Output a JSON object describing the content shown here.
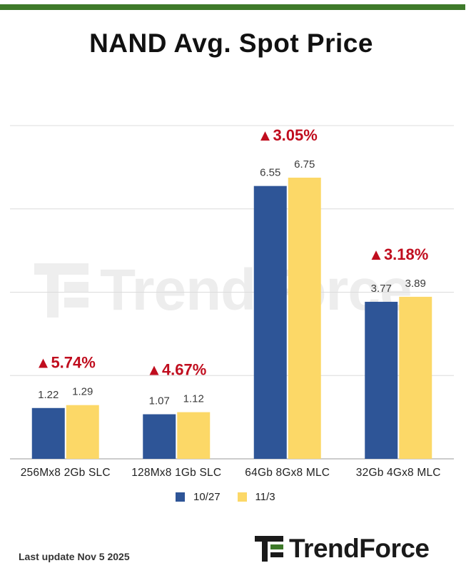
{
  "header": {
    "title": "NAND Avg. Spot Price"
  },
  "chart_data": {
    "type": "bar",
    "title": "NAND Avg. Spot Price",
    "xlabel": "",
    "ylabel": "",
    "categories": [
      "256Mx8 2Gb SLC",
      "128Mx8 1Gb SLC",
      "64Gb 8Gx8 MLC",
      "32Gb 4Gx8 MLC"
    ],
    "series": [
      {
        "name": "10/27",
        "values": [
          1.22,
          1.07,
          6.55,
          3.77
        ],
        "labels": [
          "1.22",
          "1.07",
          "6.55",
          "3.77"
        ],
        "color": "#2e5597"
      },
      {
        "name": "11/3",
        "values": [
          1.29,
          1.12,
          6.75,
          3.89
        ],
        "labels": [
          "1.29",
          "1.12",
          "6.75",
          "3.89"
        ],
        "color": "#fcd867"
      }
    ],
    "annotations": [
      "▲5.74%",
      "▲4.67%",
      "▲3.05%",
      "▲3.18%"
    ],
    "annotation_color": "#c00d1e",
    "ylim": [
      0,
      8
    ],
    "grid": true,
    "legend_position": "bottom"
  },
  "footer": {
    "last_update": "Last update Nov 5  2025"
  },
  "brand": {
    "name": "TrendForce",
    "accent": "#3e7a2a"
  }
}
